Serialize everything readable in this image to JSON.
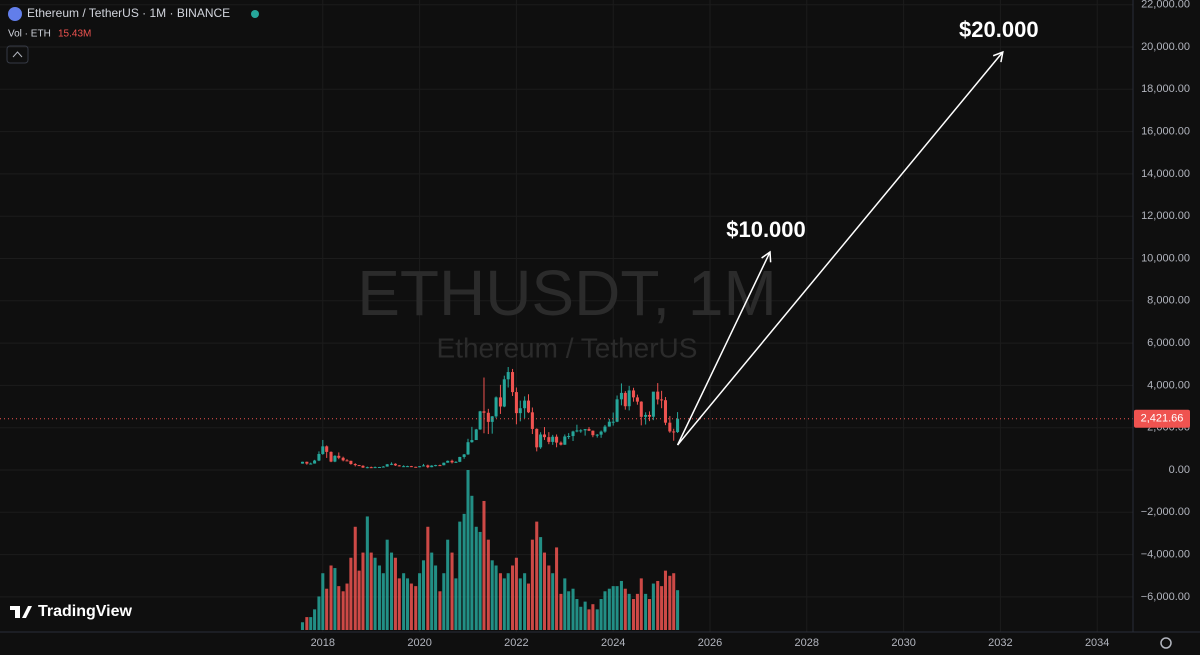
{
  "header": {
    "symbol": "Ethereum / TetherUS · 1M · BINANCE",
    "volume_title": "Vol · ETH",
    "volume_label": "15.43M"
  },
  "watermark": {
    "title": "ETHUSDT, 1M",
    "subtitle": "Ethereum / TetherUS"
  },
  "logo": "TradingView",
  "chart_data": {
    "type": "candlestick",
    "up_color": "#26a69a",
    "down_color": "#ef5350",
    "grid": true,
    "xlim": [
      2011.33,
      2034.74
    ],
    "xticks": [
      2018,
      2020,
      2022,
      2024,
      2026,
      2028,
      2030,
      2032,
      2034
    ],
    "ylim": [
      -7660,
      22222
    ],
    "yticks": [
      {
        "value": -6000,
        "label": "−6,000.00"
      },
      {
        "value": -4000,
        "label": "−4,000.00"
      },
      {
        "value": -2000,
        "label": "−2,000.00"
      },
      {
        "value": 0,
        "label": "0.00"
      },
      {
        "value": 2000,
        "label": "2,000.00"
      },
      {
        "value": 4000,
        "label": "4,000.00"
      },
      {
        "value": 6000,
        "label": "6,000.00"
      },
      {
        "value": 8000,
        "label": "8,000.00"
      },
      {
        "value": 10000,
        "label": "10,000.00"
      },
      {
        "value": 12000,
        "label": "12,000.00"
      },
      {
        "value": 14000,
        "label": "14,000.00"
      },
      {
        "value": 16000,
        "label": "16,000.00"
      },
      {
        "value": 18000,
        "label": "18,000.00"
      },
      {
        "value": 20000,
        "label": "20,000.00"
      },
      {
        "value": 22000,
        "label": "22,000.00"
      }
    ],
    "last_price": {
      "value": 2421.66,
      "label": "2,421.66"
    },
    "x": [
      2017.58,
      2017.67,
      2017.75,
      2017.83,
      2017.92,
      2018.0,
      2018.08,
      2018.17,
      2018.25,
      2018.33,
      2018.42,
      2018.5,
      2018.58,
      2018.67,
      2018.75,
      2018.83,
      2018.92,
      2019.0,
      2019.08,
      2019.17,
      2019.25,
      2019.33,
      2019.42,
      2019.5,
      2019.58,
      2019.67,
      2019.75,
      2019.83,
      2019.92,
      2020.0,
      2020.08,
      2020.17,
      2020.25,
      2020.33,
      2020.42,
      2020.5,
      2020.58,
      2020.67,
      2020.75,
      2020.83,
      2020.92,
      2021.0,
      2021.08,
      2021.17,
      2021.25,
      2021.33,
      2021.42,
      2021.5,
      2021.58,
      2021.67,
      2021.75,
      2021.83,
      2021.92,
      2022.0,
      2022.08,
      2022.17,
      2022.25,
      2022.33,
      2022.42,
      2022.5,
      2022.58,
      2022.67,
      2022.75,
      2022.83,
      2022.92,
      2023.0,
      2023.08,
      2023.17,
      2023.25,
      2023.33,
      2023.42,
      2023.5,
      2023.58,
      2023.67,
      2023.75,
      2023.83,
      2023.92,
      2024.0,
      2024.08,
      2024.17,
      2024.25,
      2024.33,
      2024.42,
      2024.5,
      2024.58,
      2024.67,
      2024.75,
      2024.83,
      2024.92,
      2025.0,
      2025.08,
      2025.17,
      2025.25,
      2025.33
    ],
    "open": [
      302,
      388,
      302,
      305,
      447,
      756,
      1118,
      856,
      397,
      670,
      577,
      455,
      433,
      283,
      232,
      198,
      113,
      133,
      107,
      136,
      141,
      162,
      268,
      293,
      218,
      172,
      180,
      182,
      151,
      130,
      179,
      217,
      133,
      206,
      231,
      225,
      345,
      434,
      360,
      386,
      616,
      737,
      1314,
      1416,
      1918,
      2773,
      2706,
      2275,
      2536,
      3433,
      3001,
      4288,
      4631,
      3683,
      2688,
      2921,
      3282,
      2727,
      1942,
      1071,
      1679,
      1553,
      1328,
      1573,
      1295,
      1196,
      1585,
      1605,
      1822,
      1870,
      1874,
      1934,
      1857,
      1645,
      1671,
      1815,
      2052,
      2282,
      2283,
      3341,
      3645,
      3015,
      3762,
      3433,
      3232,
      2513,
      2603,
      2519,
      3705,
      3337,
      3300,
      2237,
      1822,
      1794
    ],
    "high": [
      390,
      395,
      348,
      480,
      880,
      1420,
      1160,
      880,
      700,
      830,
      630,
      515,
      440,
      320,
      240,
      225,
      160,
      160,
      165,
      146,
      185,
      285,
      362,
      318,
      231,
      223,
      200,
      194,
      154,
      185,
      288,
      253,
      227,
      245,
      252,
      349,
      448,
      489,
      417,
      622,
      756,
      1475,
      2040,
      1943,
      2797,
      4372,
      2891,
      2551,
      3478,
      4027,
      4460,
      4868,
      4778,
      3900,
      3280,
      3482,
      3580,
      2955,
      1970,
      1786,
      2030,
      1790,
      1660,
      1680,
      1352,
      1680,
      1743,
      1857,
      2141,
      1928,
      1929,
      2029,
      1870,
      1700,
      1865,
      2130,
      2415,
      2718,
      3522,
      4093,
      3730,
      3977,
      3887,
      3563,
      3250,
      2728,
      2770,
      3684,
      4109,
      3744,
      3450,
      2550,
      1950,
      2738
    ],
    "low": [
      300,
      250,
      290,
      300,
      420,
      715,
      570,
      370,
      370,
      510,
      410,
      430,
      250,
      170,
      190,
      100,
      81,
      100,
      102,
      130,
      140,
      155,
      231,
      190,
      165,
      153,
      160,
      140,
      117,
      127,
      176,
      86,
      130,
      175,
      214,
      224,
      345,
      308,
      335,
      372,
      530,
      714,
      1290,
      1440,
      1900,
      1737,
      1700,
      1718,
      2451,
      2651,
      2970,
      3900,
      3500,
      2159,
      2300,
      2450,
      2690,
      1700,
      880,
      1000,
      1420,
      1220,
      1190,
      1074,
      1160,
      1190,
      1462,
      1370,
      1785,
      1760,
      1626,
      1840,
      1550,
      1531,
      1522,
      1760,
      2050,
      2100,
      2263,
      3057,
      2852,
      2817,
      3230,
      3087,
      2111,
      2150,
      2310,
      2357,
      3099,
      2920,
      2120,
      1760,
      1385,
      1750
    ],
    "close": [
      388,
      302,
      305,
      447,
      756,
      1118,
      856,
      397,
      670,
      577,
      455,
      433,
      283,
      232,
      198,
      113,
      133,
      107,
      136,
      141,
      162,
      268,
      293,
      218,
      172,
      180,
      182,
      151,
      130,
      179,
      217,
      133,
      206,
      231,
      225,
      345,
      434,
      360,
      386,
      616,
      737,
      1314,
      1416,
      1918,
      2773,
      2706,
      2275,
      2536,
      3433,
      3001,
      4288,
      4631,
      3683,
      2688,
      2921,
      3282,
      2727,
      1942,
      1071,
      1679,
      1553,
      1328,
      1573,
      1295,
      1196,
      1585,
      1605,
      1822,
      1870,
      1874,
      1934,
      1857,
      1645,
      1671,
      1815,
      2052,
      2282,
      2283,
      3341,
      3645,
      3015,
      3762,
      3433,
      3232,
      2513,
      2603,
      2519,
      3705,
      3337,
      3300,
      2237,
      1822,
      1794,
      2421.66
    ],
    "volume": [
      3,
      5,
      5,
      8,
      13,
      22,
      16,
      25,
      24,
      17,
      15,
      18,
      28,
      40,
      23,
      30,
      44,
      30,
      28,
      25,
      22,
      35,
      30,
      28,
      20,
      22,
      20,
      18,
      17,
      22,
      27,
      40,
      30,
      25,
      15,
      22,
      35,
      30,
      20,
      42,
      45,
      62,
      52,
      40,
      38,
      50,
      35,
      27,
      25,
      22,
      20,
      22,
      25,
      28,
      20,
      22,
      18,
      35,
      42,
      36,
      30,
      25,
      22,
      32,
      14,
      20,
      15,
      16,
      12,
      9,
      11,
      8,
      10,
      8,
      12,
      15,
      16,
      17,
      17,
      19,
      16,
      14,
      12,
      14,
      20,
      14,
      12,
      18,
      19,
      17,
      23,
      21,
      22,
      15.43
    ],
    "annotations": [
      {
        "label": "$10.000",
        "from": [
          2025.33,
          1182
        ],
        "to": [
          2027.24,
          10307
        ]
      },
      {
        "label": "$20.000",
        "from": [
          2025.33,
          1182
        ],
        "to": [
          2032.05,
          19763
        ]
      }
    ]
  }
}
